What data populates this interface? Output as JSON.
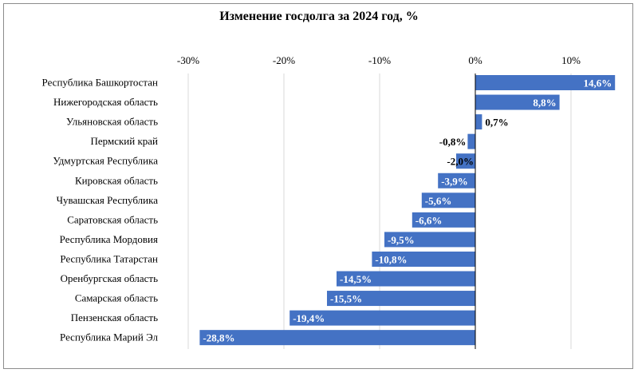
{
  "chart_data": {
    "type": "bar",
    "orientation": "horizontal",
    "title": "Изменение госдолга за 2024 год, %",
    "xlabel": "",
    "ylabel": "",
    "xlim": [
      -30,
      14.6
    ],
    "xticks": [
      -30,
      -20,
      -10,
      0,
      10
    ],
    "xtick_labels": [
      "-30%",
      "-20%",
      "-10%",
      "0%",
      "10%"
    ],
    "axis_position": "top",
    "grid": true,
    "legend": "none",
    "bar_color": "#4472c4",
    "categories": [
      "Республика Башкортостан",
      "Нижегородская область",
      "Ульяновская область",
      "Пермский край",
      "Удмуртская Республика",
      "Кировская область",
      "Чувашская Республика",
      "Саратовская область",
      "Республика Мордовия",
      "Республика Татарстан",
      "Оренбургская область",
      "Самарская область",
      "Пензенская область",
      "Республика  Марий Эл"
    ],
    "values": [
      14.6,
      8.8,
      0.7,
      -0.8,
      -2.0,
      -3.9,
      -5.6,
      -6.6,
      -9.5,
      -10.8,
      -14.5,
      -15.5,
      -19.4,
      -28.8
    ],
    "value_labels": [
      "14,6%",
      "8,8%",
      "0,7%",
      "-0,8%",
      "-2,0%",
      "-3,9%",
      "-5,6%",
      "-6,6%",
      "-9,5%",
      "-10,8%",
      "-14,5%",
      "-15,5%",
      "-19,4%",
      "-28,8%"
    ]
  }
}
